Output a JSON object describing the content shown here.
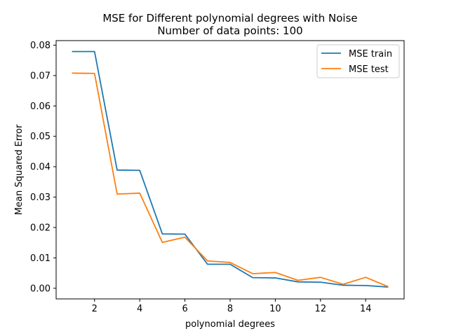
{
  "chart_data": {
    "type": "line",
    "title": "MSE for Different polynomial degrees with Noise",
    "subtitle": "Number of data points: 100",
    "xlabel": "polynomial degrees",
    "ylabel": "Mean Squared Error",
    "xlim": [
      0.3,
      15.7
    ],
    "ylim": [
      -0.0035,
      0.0815
    ],
    "xticks": [
      2,
      4,
      6,
      8,
      10,
      12,
      14
    ],
    "yticks": [
      0.0,
      0.01,
      0.02,
      0.03,
      0.04,
      0.05,
      0.06,
      0.07,
      0.08
    ],
    "ytick_labels": [
      "0.00",
      "0.01",
      "0.02",
      "0.03",
      "0.04",
      "0.05",
      "0.06",
      "0.07",
      "0.08"
    ],
    "grid": false,
    "legend_position": "top-right",
    "x": [
      1,
      2,
      3,
      4,
      5,
      6,
      7,
      8,
      9,
      10,
      11,
      12,
      13,
      14,
      15
    ],
    "series": [
      {
        "name": "MSE train",
        "color": "#1f77b4",
        "values": [
          0.0779,
          0.0779,
          0.0389,
          0.0388,
          0.0179,
          0.0178,
          0.0079,
          0.0079,
          0.0035,
          0.0034,
          0.0021,
          0.002,
          0.001,
          0.0009,
          0.0004
        ]
      },
      {
        "name": "MSE test",
        "color": "#ff7f0e",
        "values": [
          0.0708,
          0.0707,
          0.031,
          0.0313,
          0.0151,
          0.0168,
          0.009,
          0.0085,
          0.0048,
          0.0052,
          0.0026,
          0.0036,
          0.0013,
          0.0036,
          0.0005
        ]
      }
    ]
  }
}
